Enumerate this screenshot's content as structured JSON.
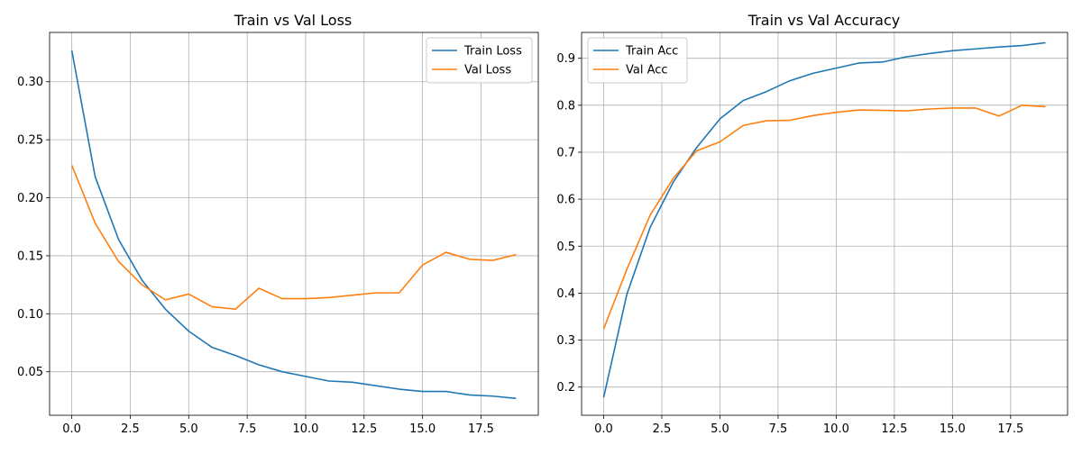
{
  "chart_data": [
    {
      "type": "line",
      "title": "Train vs Val Loss",
      "xlabel": "",
      "ylabel": "",
      "grid": true,
      "legend_position": "top-right",
      "xlim": [
        -0.95,
        19.95
      ],
      "ylim": [
        0.0125,
        0.3425
      ],
      "xticks": [
        0.0,
        2.5,
        5.0,
        7.5,
        10.0,
        12.5,
        15.0,
        17.5
      ],
      "xtick_labels": [
        "0.0",
        "2.5",
        "5.0",
        "7.5",
        "10.0",
        "12.5",
        "15.0",
        "17.5"
      ],
      "yticks": [
        0.05,
        0.1,
        0.15,
        0.2,
        0.25,
        0.3
      ],
      "ytick_labels": [
        "0.05",
        "0.10",
        "0.15",
        "0.20",
        "0.25",
        "0.30"
      ],
      "x": [
        0,
        1,
        2,
        3,
        4,
        5,
        6,
        7,
        8,
        9,
        10,
        11,
        12,
        13,
        14,
        15,
        16,
        17,
        18,
        19
      ],
      "series": [
        {
          "name": "Train Loss",
          "color": "#1f77b4",
          "values": [
            0.327,
            0.218,
            0.164,
            0.129,
            0.104,
            0.085,
            0.071,
            0.064,
            0.056,
            0.05,
            0.046,
            0.042,
            0.041,
            0.038,
            0.035,
            0.033,
            0.033,
            0.03,
            0.029,
            0.027
          ]
        },
        {
          "name": "Val Loss",
          "color": "#ff7f0e",
          "values": [
            0.228,
            0.178,
            0.145,
            0.125,
            0.112,
            0.117,
            0.106,
            0.104,
            0.122,
            0.113,
            0.113,
            0.114,
            0.116,
            0.118,
            0.118,
            0.142,
            0.153,
            0.147,
            0.146,
            0.151
          ]
        }
      ]
    },
    {
      "type": "line",
      "title": "Train vs Val Accuracy",
      "xlabel": "",
      "ylabel": "",
      "grid": true,
      "legend_position": "top-left",
      "xlim": [
        -0.95,
        19.95
      ],
      "ylim": [
        0.14,
        0.955
      ],
      "xticks": [
        0.0,
        2.5,
        5.0,
        7.5,
        10.0,
        12.5,
        15.0,
        17.5
      ],
      "xtick_labels": [
        "0.0",
        "2.5",
        "5.0",
        "7.5",
        "10.0",
        "12.5",
        "15.0",
        "17.5"
      ],
      "yticks": [
        0.2,
        0.3,
        0.4,
        0.5,
        0.6,
        0.7,
        0.8,
        0.9
      ],
      "ytick_labels": [
        "0.2",
        "0.3",
        "0.4",
        "0.5",
        "0.6",
        "0.7",
        "0.8",
        "0.9"
      ],
      "x": [
        0,
        1,
        2,
        3,
        4,
        5,
        6,
        7,
        8,
        9,
        10,
        11,
        12,
        13,
        14,
        15,
        16,
        17,
        18,
        19
      ],
      "series": [
        {
          "name": "Train Acc",
          "color": "#1f77b4",
          "values": [
            0.178,
            0.398,
            0.54,
            0.637,
            0.71,
            0.771,
            0.81,
            0.829,
            0.852,
            0.868,
            0.879,
            0.89,
            0.892,
            0.903,
            0.91,
            0.916,
            0.92,
            0.924,
            0.927,
            0.933
          ]
        },
        {
          "name": "Val Acc",
          "color": "#ff7f0e",
          "values": [
            0.324,
            0.451,
            0.566,
            0.645,
            0.703,
            0.722,
            0.757,
            0.767,
            0.768,
            0.778,
            0.785,
            0.79,
            0.789,
            0.788,
            0.792,
            0.794,
            0.794,
            0.777,
            0.8,
            0.797
          ]
        }
      ]
    }
  ]
}
